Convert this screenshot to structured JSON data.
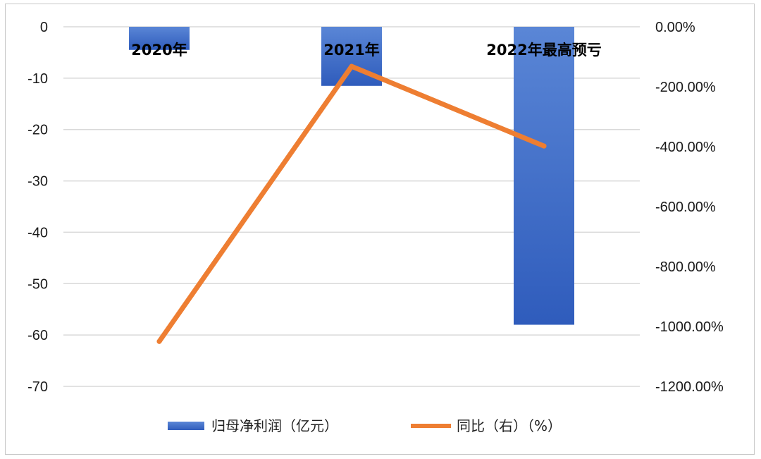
{
  "chart_data": {
    "type": "bar+line",
    "categories": [
      "2020年",
      "2021年",
      "2022年最高预亏"
    ],
    "series": [
      {
        "name": "归母净利润（亿元）",
        "type": "bar",
        "axis": "left",
        "values": [
          -4.5,
          -11.5,
          -58
        ]
      },
      {
        "name": "同比（右）（%）",
        "type": "line",
        "axis": "right",
        "values": [
          -1050,
          -132,
          -398
        ]
      }
    ],
    "left_axis": {
      "ylim": [
        -70,
        0
      ],
      "ticks": [
        "0",
        "-10",
        "-20",
        "-30",
        "-40",
        "-50",
        "-60",
        "-70"
      ]
    },
    "right_axis": {
      "ylim": [
        -1200,
        0
      ],
      "ticks": [
        "0.00%",
        "-200.00%",
        "-400.00%",
        "-600.00%",
        "-800.00%",
        "-1000.00%",
        "-1200.00%"
      ]
    },
    "grid": true,
    "legend": "bottom",
    "colors": {
      "bar": "#3a68c4",
      "line": "#ee7e32",
      "grid": "#d9d9d9"
    }
  }
}
